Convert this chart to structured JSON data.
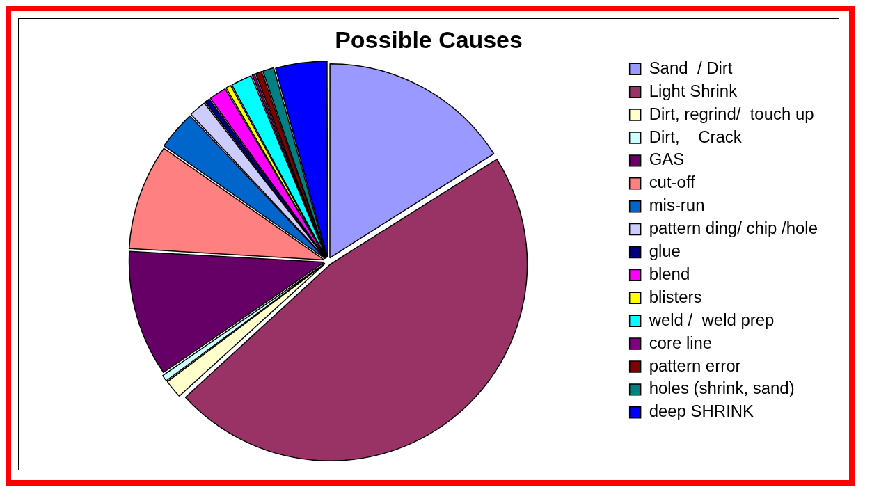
{
  "chart_data": {
    "type": "pie",
    "title": "Possible Causes",
    "categories": [
      "Sand  / Dirt",
      "Light Shrink",
      "Dirt, regrind/  touch up",
      "Dirt,    Crack",
      "GAS",
      "cut-off",
      "mis-run",
      "pattern ding/ chip /hole",
      "glue",
      "blend",
      "blisters",
      "weld /  weld prep",
      "core line",
      "pattern error",
      "holes (shrink, sand)",
      "deep SHRINK"
    ],
    "values": [
      16,
      47.2,
      1.6,
      0.6,
      10.5,
      8.8,
      3.3,
      1.5,
      0.5,
      1.5,
      0.5,
      1.8,
      0.3,
      0.6,
      1.0,
      4.3
    ],
    "colors": [
      "#9999ff",
      "#993366",
      "#ffffcc",
      "#ccffff",
      "#660066",
      "#ff8080",
      "#0066cc",
      "#ccccff",
      "#000080",
      "#ff00ff",
      "#ffff00",
      "#00ffff",
      "#800080",
      "#800000",
      "#008080",
      "#0000ff"
    ],
    "legend": "right"
  }
}
